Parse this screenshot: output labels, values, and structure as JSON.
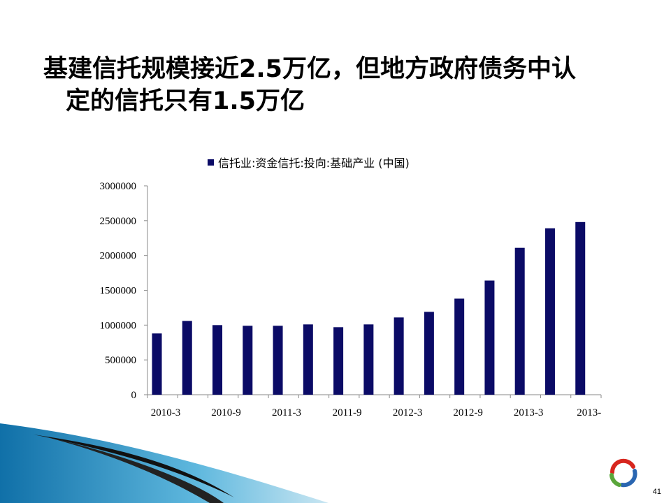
{
  "title": {
    "line1": "基建信托规模接近2.5万亿，但地方政府债务中认",
    "line2": "定的信托只有1.5万亿"
  },
  "page_number": "41",
  "colors": {
    "bar": "#0b0b66",
    "accent_blue": "#1a7fb8",
    "logo_red": "#d7261e",
    "logo_green": "#5aa63a",
    "logo_blue": "#2a66b1"
  },
  "icons": {
    "logo": "ring-logo-icon"
  },
  "chart_data": {
    "type": "bar",
    "legend": {
      "position": "top",
      "entries": [
        "信托业:资金信托:投向:基础产业 (中国)"
      ]
    },
    "series": [
      {
        "name": "信托业:资金信托:投向:基础产业 (中国)",
        "values": [
          880000,
          1060000,
          1000000,
          990000,
          990000,
          1010000,
          970000,
          1010000,
          1110000,
          1190000,
          1380000,
          1640000,
          2110000,
          2390000,
          2480000
        ]
      }
    ],
    "x_tick_labels": [
      "2010-3",
      "2010-9",
      "2011-3",
      "2011-9",
      "2012-3",
      "2012-9",
      "2013-3",
      "2013-"
    ],
    "y_tick_labels": [
      "0",
      "500000",
      "1000000",
      "1500000",
      "2000000",
      "2500000",
      "3000000"
    ],
    "ylim": [
      0,
      3000000
    ],
    "grid": false
  }
}
